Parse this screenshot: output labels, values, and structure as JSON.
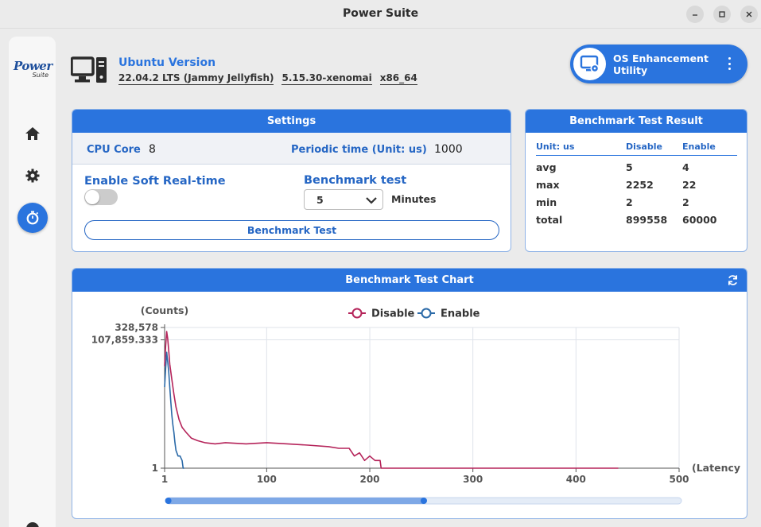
{
  "window": {
    "title": "Power Suite"
  },
  "logo": {
    "line1": "Power",
    "line2": "Suite"
  },
  "os": {
    "title": "Ubuntu Version",
    "version": "22.04.2 LTS (Jammy Jellyfish)",
    "kernel": "5.15.30-xenomai",
    "arch": "x86_64"
  },
  "utility_button": {
    "label": "OS Enhancement Utility"
  },
  "settings": {
    "header": "Settings",
    "cpu_core_label": "CPU Core",
    "cpu_core_value": "8",
    "periodic_label": "Periodic time (Unit: us)",
    "periodic_value": "1000",
    "soft_rt_label": "Enable Soft Real-time",
    "soft_rt_enabled": false,
    "benchmark_label": "Benchmark test",
    "benchmark_value": "5",
    "minutes_label": "Minutes",
    "benchmark_button": "Benchmark Test"
  },
  "result": {
    "header": "Benchmark Test Result",
    "columns": [
      "Unit: us",
      "Disable",
      "Enable"
    ],
    "rows": [
      [
        "avg",
        "5",
        "4"
      ],
      [
        "max",
        "2252",
        "22"
      ],
      [
        "min",
        "2",
        "2"
      ],
      [
        "total",
        "899558",
        "60000"
      ]
    ]
  },
  "chart_data": {
    "type": "line",
    "title": "Benchmark Test Chart",
    "ylabel": "(Counts)",
    "xlabel": "(Latency",
    "y_scale": "log",
    "x_ticks": [
      1,
      100,
      200,
      300,
      400,
      500
    ],
    "y_tick_labels": [
      "328,578",
      "107,859.333",
      "1"
    ],
    "y_tick_values": [
      328578,
      107859.333,
      1
    ],
    "xlim": [
      1,
      500
    ],
    "grid": true,
    "legend_position": "top-center",
    "series": [
      {
        "name": "Disable",
        "color": "#b5245a",
        "x": [
          1,
          2,
          3,
          4,
          5,
          6,
          8,
          10,
          12,
          15,
          18,
          22,
          27,
          33,
          40,
          50,
          60,
          80,
          100,
          120,
          140,
          160,
          170,
          180,
          185,
          190,
          195,
          200,
          205,
          210,
          211,
          300,
          400,
          441
        ],
        "y": [
          10000,
          60000,
          230000,
          120000,
          40000,
          12000,
          3000,
          800,
          250,
          80,
          40,
          25,
          15,
          12,
          10,
          9,
          10,
          9,
          10,
          9,
          8,
          7,
          6,
          6,
          3,
          4,
          2,
          3,
          2,
          2,
          1,
          1,
          1,
          1
        ]
      },
      {
        "name": "Enable",
        "color": "#2b6aa8",
        "x": [
          1,
          2,
          3,
          4,
          5,
          6,
          7,
          8,
          9,
          10,
          11,
          12,
          14,
          16,
          18,
          19,
          20
        ],
        "y": [
          1500,
          8000,
          35000,
          15000,
          6000,
          1500,
          400,
          120,
          50,
          25,
          10,
          5,
          3,
          3,
          2,
          1,
          1
        ]
      }
    ],
    "zoom_range": [
      0.02,
      0.5
    ]
  }
}
